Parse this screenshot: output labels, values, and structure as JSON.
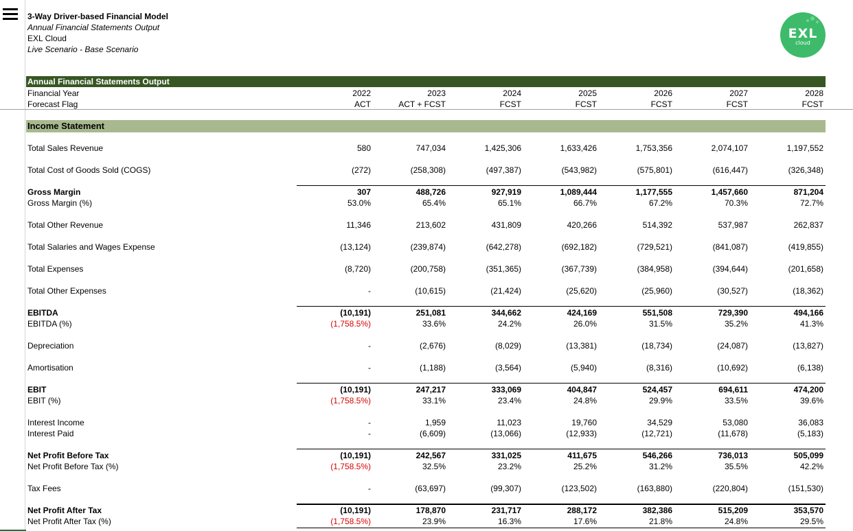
{
  "header": {
    "title": "3-Way Driver-based Financial Model",
    "subtitle": "Annual Financial Statements Output",
    "company": "EXL Cloud",
    "scenario": "Live Scenario - Base Scenario"
  },
  "logo": {
    "text": "EXL",
    "sub": "cloud"
  },
  "banner": "Annual Financial Statements Output",
  "col_header": {
    "year_label": "Financial Year",
    "flag_label": "Forecast Flag",
    "years": [
      "2022",
      "2023",
      "2024",
      "2025",
      "2026",
      "2027",
      "2028"
    ],
    "flags": [
      "ACT",
      "ACT + FCST",
      "FCST",
      "FCST",
      "FCST",
      "FCST",
      "FCST"
    ]
  },
  "section_title": "Income Statement",
  "rows": [
    {
      "label": "Total Sales Revenue",
      "values": [
        "580",
        "747,034",
        "1,425,306",
        "1,633,426",
        "1,753,356",
        "2,074,107",
        "1,197,552"
      ]
    },
    {
      "label": "Total Cost of Goods Sold (COGS)",
      "values": [
        "(272)",
        "(258,308)",
        "(497,387)",
        "(543,982)",
        "(575,801)",
        "(616,447)",
        "(326,348)"
      ]
    },
    {
      "label": "Gross Margin",
      "values": [
        "307",
        "488,726",
        "927,919",
        "1,089,444",
        "1,177,555",
        "1,457,660",
        "871,204"
      ]
    },
    {
      "label": "Gross Margin (%)",
      "values": [
        "53.0%",
        "65.4%",
        "65.1%",
        "66.7%",
        "67.2%",
        "70.3%",
        "72.7%"
      ]
    },
    {
      "label": "Total Other Revenue",
      "values": [
        "11,346",
        "213,602",
        "431,809",
        "420,266",
        "514,392",
        "537,987",
        "262,837"
      ]
    },
    {
      "label": "Total Salaries and Wages Expense",
      "values": [
        "(13,124)",
        "(239,874)",
        "(642,278)",
        "(692,182)",
        "(729,521)",
        "(841,087)",
        "(419,855)"
      ]
    },
    {
      "label": "Total Expenses",
      "values": [
        "(8,720)",
        "(200,758)",
        "(351,365)",
        "(367,739)",
        "(384,958)",
        "(394,644)",
        "(201,658)"
      ]
    },
    {
      "label": "Total Other Expenses",
      "values": [
        "-",
        "(10,615)",
        "(21,424)",
        "(25,620)",
        "(25,960)",
        "(30,527)",
        "(18,362)"
      ]
    },
    {
      "label": "EBITDA",
      "values": [
        "(10,191)",
        "251,081",
        "344,662",
        "424,169",
        "551,508",
        "729,390",
        "494,166"
      ]
    },
    {
      "label": "EBITDA (%)",
      "values": [
        "(1,758.5%)",
        "33.6%",
        "24.2%",
        "26.0%",
        "31.5%",
        "35.2%",
        "41.3%"
      ]
    },
    {
      "label": "Depreciation",
      "values": [
        "-",
        "(2,676)",
        "(8,029)",
        "(13,381)",
        "(18,734)",
        "(24,087)",
        "(13,827)"
      ]
    },
    {
      "label": "Amortisation",
      "values": [
        "-",
        "(1,188)",
        "(3,564)",
        "(5,940)",
        "(8,316)",
        "(10,692)",
        "(6,138)"
      ]
    },
    {
      "label": "EBIT",
      "values": [
        "(10,191)",
        "247,217",
        "333,069",
        "404,847",
        "524,457",
        "694,611",
        "474,200"
      ]
    },
    {
      "label": "EBIT (%)",
      "values": [
        "(1,758.5%)",
        "33.1%",
        "23.4%",
        "24.8%",
        "29.9%",
        "33.5%",
        "39.6%"
      ]
    },
    {
      "label": "Interest Income",
      "values": [
        "-",
        "1,959",
        "11,023",
        "19,760",
        "34,529",
        "53,080",
        "36,083"
      ]
    },
    {
      "label": "Interest Paid",
      "values": [
        "-",
        "(6,609)",
        "(13,066)",
        "(12,933)",
        "(12,721)",
        "(11,678)",
        "(5,183)"
      ]
    },
    {
      "label": "Net Profit Before Tax",
      "values": [
        "(10,191)",
        "242,567",
        "331,025",
        "411,675",
        "546,266",
        "736,013",
        "505,099"
      ]
    },
    {
      "label": "Net Profit Before Tax (%)",
      "values": [
        "(1,758.5%)",
        "32.5%",
        "23.2%",
        "25.2%",
        "31.2%",
        "35.5%",
        "42.2%"
      ]
    },
    {
      "label": "Tax Fees",
      "values": [
        "-",
        "(63,697)",
        "(99,307)",
        "(123,502)",
        "(163,880)",
        "(220,804)",
        "(151,530)"
      ]
    },
    {
      "label": "Net Profit After Tax",
      "values": [
        "(10,191)",
        "178,870",
        "231,717",
        "288,172",
        "382,386",
        "515,209",
        "353,570"
      ]
    },
    {
      "label": "Net Profit After Tax (%)",
      "values": [
        "(1,758.5%)",
        "23.9%",
        "16.3%",
        "17.6%",
        "21.8%",
        "24.8%",
        "29.5%"
      ]
    }
  ]
}
